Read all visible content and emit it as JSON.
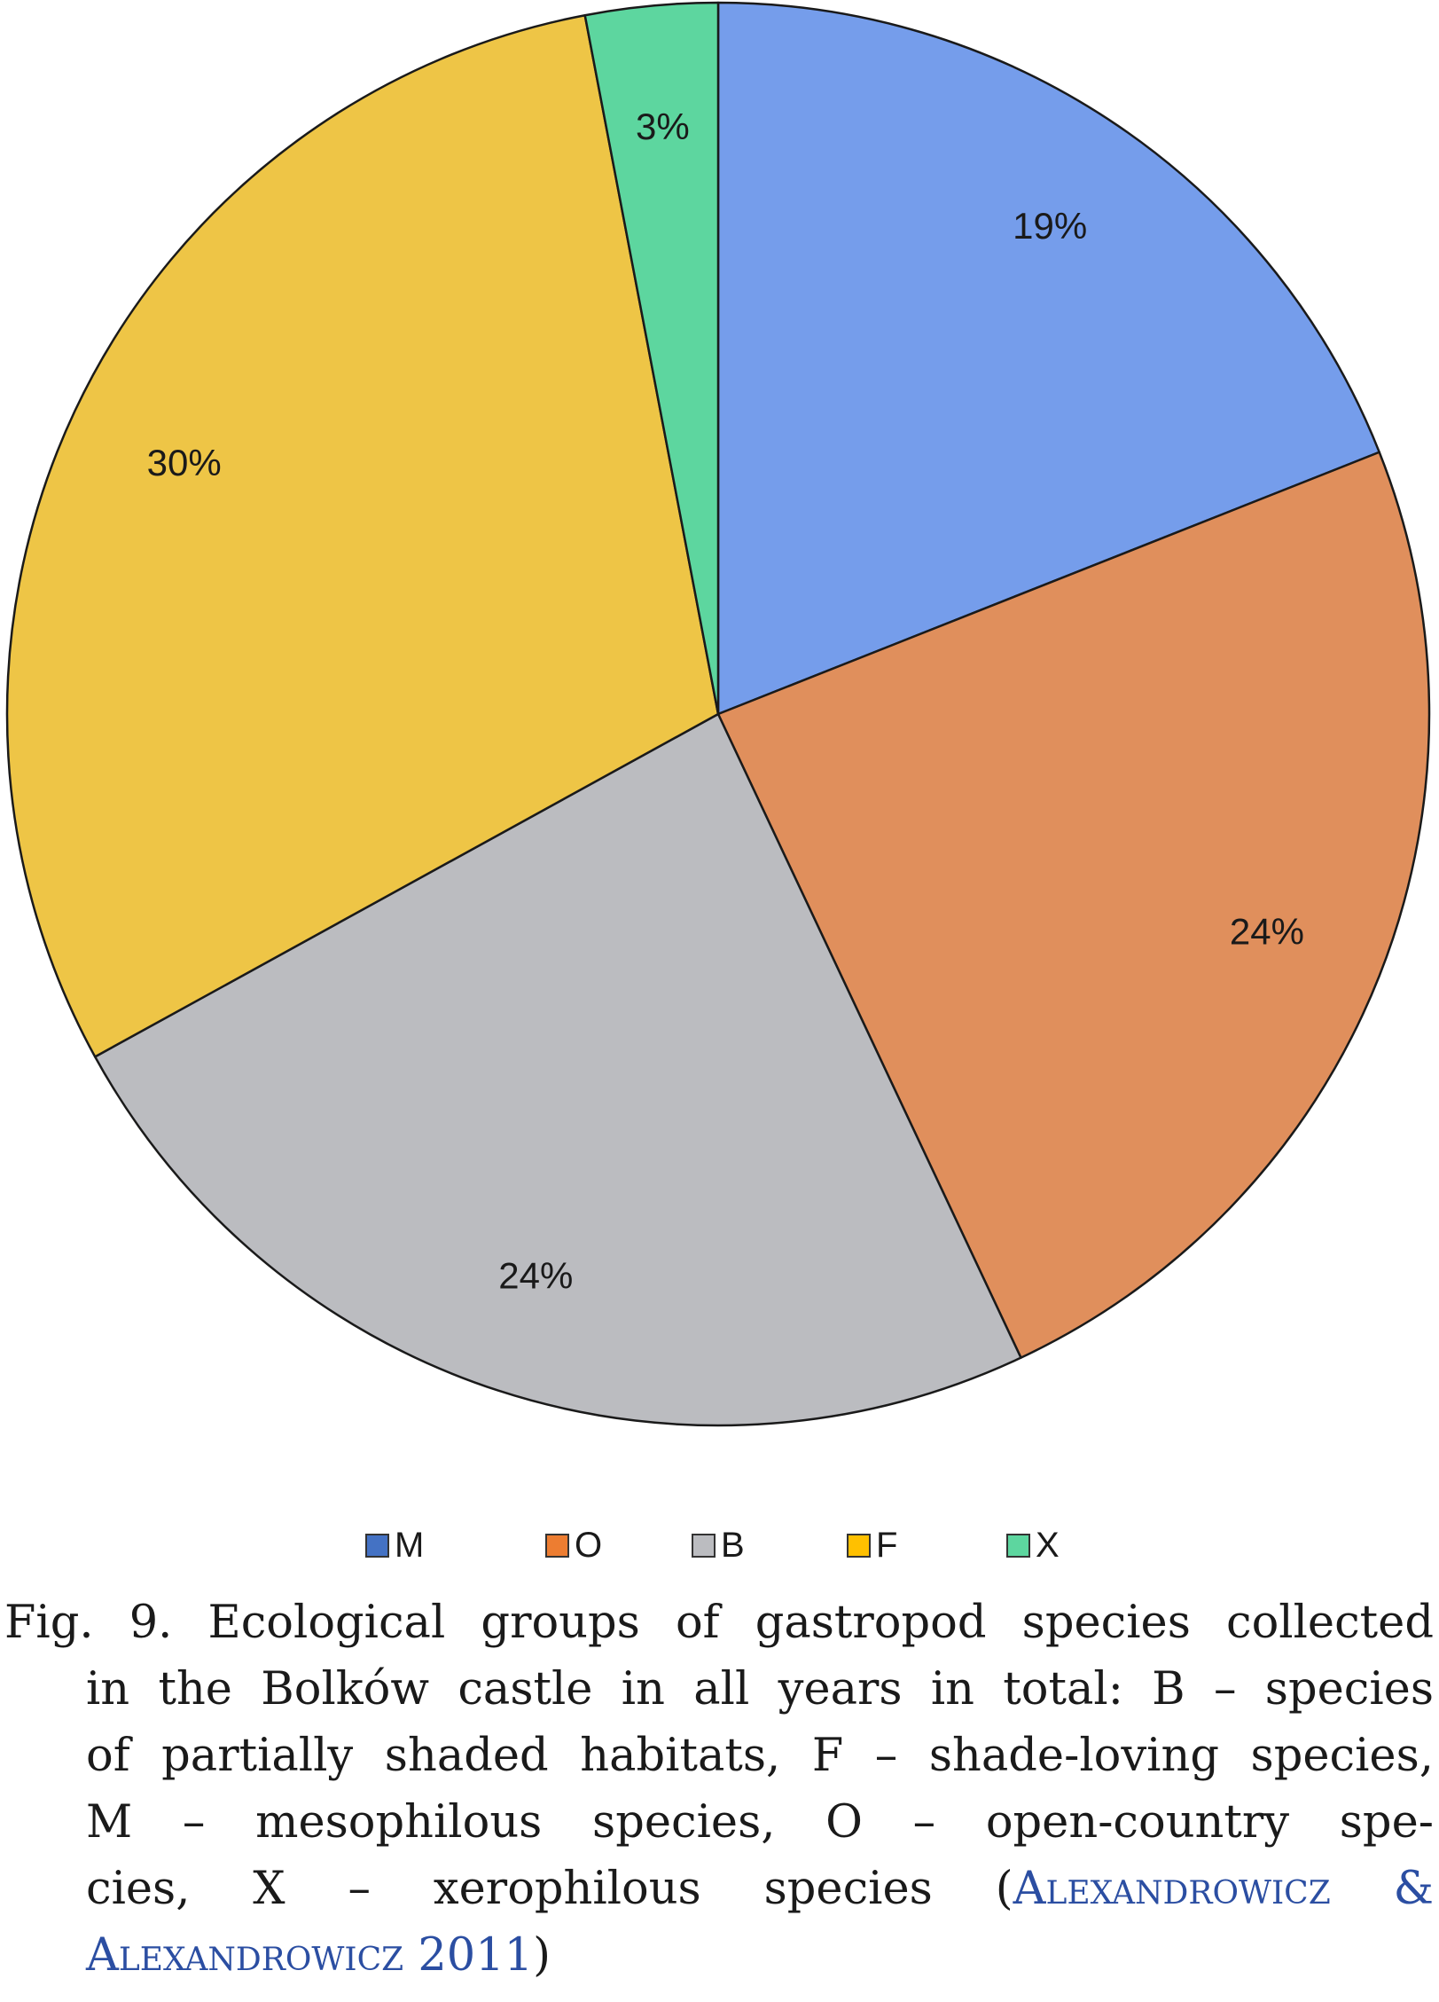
{
  "chart_data": {
    "type": "pie",
    "title": "",
    "slices": [
      {
        "label": "M",
        "value": 19,
        "display": "19%",
        "color": "#759DEB"
      },
      {
        "label": "O",
        "value": 24,
        "display": "24%",
        "color": "#E08F5C"
      },
      {
        "label": "B",
        "value": 24,
        "display": "24%",
        "color": "#BBBCC0"
      },
      {
        "label": "F",
        "value": 30,
        "display": "30%",
        "color": "#EEC546"
      },
      {
        "label": "X",
        "value": 3,
        "display": "3%",
        "color": "#5DD69F"
      }
    ],
    "legend": {
      "placement": "bottom",
      "entries": [
        {
          "label": "M",
          "color": "#4472C4"
        },
        {
          "label": "O",
          "color": "#ED7D31"
        },
        {
          "label": "B",
          "color": "#BBBCC0"
        },
        {
          "label": "F",
          "color": "#FFC000"
        },
        {
          "label": "X",
          "color": "#5DD69F"
        }
      ]
    },
    "start_angle": "12 o'clock",
    "direction": "clockwise"
  },
  "caption": {
    "line1": "Fig. 9. Ecological groups of gastropod species collected",
    "line2": "in the Bolków castle in all years in total: B – species",
    "line3": "of partially shaded habitats, F – shade-loving species,",
    "line4": "M – mesophilous species, O – open-country spe-",
    "line5_text": "cies, X – xerophilous species (",
    "line5_cite": "Alexandrowicz &",
    "line6_cite": "Alexandrowicz 2011",
    "line6_close": ")"
  }
}
